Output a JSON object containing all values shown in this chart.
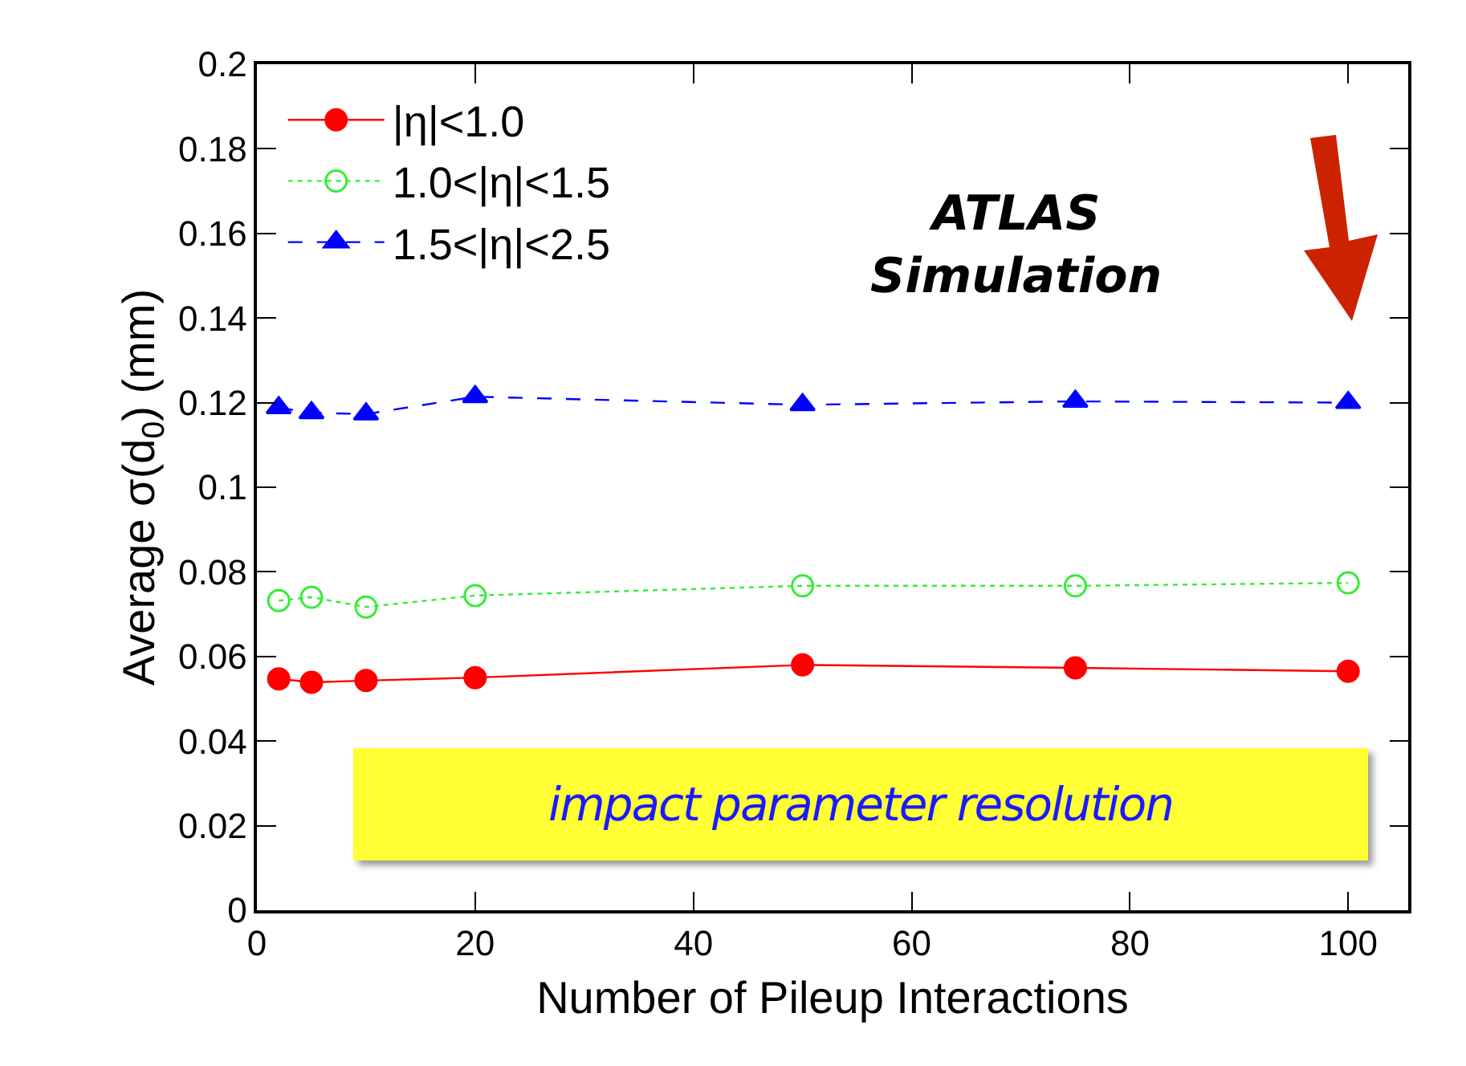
{
  "chart_data": {
    "type": "line",
    "xlabel": "Number of Pileup Interactions",
    "ylabel": "Average σ(d$_{0}$) (mm)",
    "x": [
      2,
      5,
      10,
      20,
      50,
      75,
      100
    ],
    "series": [
      {
        "name": "|η|<1.0",
        "color": "#ff0000",
        "marker": "circle",
        "line_style": "solid",
        "values": [
          0.0547,
          0.0539,
          0.0543,
          0.055,
          0.058,
          0.0573,
          0.0565
        ]
      },
      {
        "name": "1.0<|η|<1.5",
        "color": "#33ee33",
        "marker": "circle",
        "line_style": "dotted",
        "values": [
          0.0732,
          0.074,
          0.0717,
          0.0744,
          0.0767,
          0.0767,
          0.0774
        ]
      },
      {
        "name": "1.5<|η|<2.5",
        "color": "#0000ff",
        "marker": "triangle",
        "line_style": "dashed",
        "values": [
          0.1188,
          0.1176,
          0.1173,
          0.1214,
          0.1195,
          0.1203,
          0.12
        ]
      }
    ],
    "xlim": [
      0,
      105.5
    ],
    "xticks": [
      0,
      20,
      40,
      60,
      80,
      100
    ],
    "ylim": [
      0,
      0.2
    ],
    "yticks": [
      0,
      0.02,
      0.04,
      0.06,
      0.08,
      0.1,
      0.12,
      0.14,
      0.16,
      0.18,
      0.2
    ],
    "grid": false,
    "legend": "top left",
    "annotations": [
      "ATLAS\nSimulation",
      "impact parameter resolution"
    ]
  }
}
